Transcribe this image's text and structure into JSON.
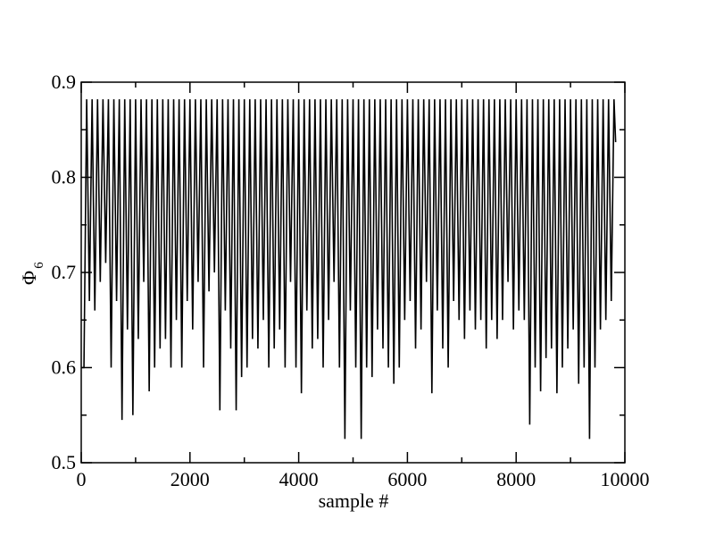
{
  "chart_data": {
    "type": "line",
    "xlabel": "sample #",
    "ylabel": "Φ",
    "ylabel_subscript": "6",
    "xlim": [
      0,
      10000
    ],
    "xticks": [
      0,
      2000,
      4000,
      6000,
      8000,
      10000
    ],
    "ylim": [
      0.5,
      0.9
    ],
    "yticks": [
      0.5,
      0.6,
      0.7,
      0.8,
      0.9
    ],
    "grid": false,
    "series": [
      {
        "color": "#000000",
        "x": [
          0,
          50,
          100,
          150,
          200,
          250,
          300,
          350,
          400,
          450,
          500,
          550,
          600,
          650,
          700,
          750,
          800,
          850,
          900,
          950,
          1000,
          1050,
          1100,
          1150,
          1200,
          1250,
          1300,
          1350,
          1400,
          1450,
          1500,
          1550,
          1600,
          1650,
          1700,
          1750,
          1800,
          1850,
          1900,
          1950,
          2000,
          2050,
          2100,
          2150,
          2200,
          2250,
          2300,
          2350,
          2400,
          2450,
          2500,
          2550,
          2600,
          2650,
          2700,
          2750,
          2800,
          2850,
          2900,
          2950,
          3000,
          3050,
          3100,
          3150,
          3200,
          3250,
          3300,
          3350,
          3400,
          3450,
          3500,
          3550,
          3600,
          3650,
          3700,
          3750,
          3800,
          3850,
          3900,
          3950,
          4000,
          4050,
          4100,
          4150,
          4200,
          4250,
          4300,
          4350,
          4400,
          4450,
          4500,
          4550,
          4600,
          4650,
          4700,
          4750,
          4800,
          4850,
          4900,
          4950,
          5000,
          5050,
          5100,
          5150,
          5200,
          5250,
          5300,
          5350,
          5400,
          5450,
          5500,
          5550,
          5600,
          5650,
          5700,
          5750,
          5800,
          5850,
          5900,
          5950,
          6000,
          6050,
          6100,
          6150,
          6200,
          6250,
          6300,
          6350,
          6400,
          6450,
          6500,
          6550,
          6600,
          6650,
          6700,
          6750,
          6800,
          6850,
          6900,
          6950,
          7000,
          7050,
          7100,
          7150,
          7200,
          7250,
          7300,
          7350,
          7400,
          7450,
          7500,
          7550,
          7600,
          7650,
          7700,
          7750,
          7800,
          7850,
          7900,
          7950,
          8000,
          8050,
          8100,
          8150,
          8200,
          8250,
          8300,
          8350,
          8400,
          8450,
          8500,
          8550,
          8600,
          8650,
          8700,
          8750,
          8800,
          8850,
          8900,
          8950,
          9000,
          9050,
          9100,
          9150,
          9200,
          9250,
          9300,
          9350,
          9400,
          9450,
          9500,
          9550,
          9600,
          9650,
          9700,
          9750,
          9800,
          9830
        ],
        "values": [
          0.6,
          0.6,
          0.882,
          0.67,
          0.882,
          0.66,
          0.882,
          0.69,
          0.882,
          0.71,
          0.882,
          0.6,
          0.882,
          0.67,
          0.882,
          0.545,
          0.882,
          0.64,
          0.882,
          0.55,
          0.882,
          0.63,
          0.882,
          0.69,
          0.882,
          0.575,
          0.882,
          0.6,
          0.882,
          0.62,
          0.882,
          0.63,
          0.882,
          0.6,
          0.882,
          0.65,
          0.882,
          0.6,
          0.882,
          0.67,
          0.882,
          0.64,
          0.882,
          0.69,
          0.882,
          0.6,
          0.882,
          0.68,
          0.882,
          0.7,
          0.882,
          0.555,
          0.882,
          0.66,
          0.882,
          0.62,
          0.882,
          0.555,
          0.882,
          0.59,
          0.882,
          0.6,
          0.882,
          0.63,
          0.882,
          0.62,
          0.882,
          0.65,
          0.882,
          0.6,
          0.882,
          0.62,
          0.882,
          0.64,
          0.882,
          0.6,
          0.882,
          0.69,
          0.882,
          0.6,
          0.882,
          0.573,
          0.882,
          0.66,
          0.882,
          0.62,
          0.882,
          0.63,
          0.882,
          0.6,
          0.882,
          0.65,
          0.882,
          0.69,
          0.882,
          0.6,
          0.882,
          0.525,
          0.882,
          0.66,
          0.882,
          0.6,
          0.882,
          0.525,
          0.882,
          0.6,
          0.882,
          0.59,
          0.882,
          0.64,
          0.882,
          0.62,
          0.882,
          0.6,
          0.882,
          0.583,
          0.882,
          0.6,
          0.882,
          0.65,
          0.882,
          0.67,
          0.882,
          0.62,
          0.882,
          0.64,
          0.882,
          0.69,
          0.882,
          0.573,
          0.882,
          0.66,
          0.882,
          0.62,
          0.882,
          0.6,
          0.882,
          0.67,
          0.882,
          0.65,
          0.882,
          0.63,
          0.882,
          0.66,
          0.882,
          0.64,
          0.882,
          0.65,
          0.882,
          0.62,
          0.882,
          0.65,
          0.882,
          0.63,
          0.882,
          0.65,
          0.882,
          0.69,
          0.882,
          0.64,
          0.882,
          0.66,
          0.882,
          0.65,
          0.882,
          0.54,
          0.882,
          0.6,
          0.882,
          0.575,
          0.882,
          0.61,
          0.882,
          0.62,
          0.882,
          0.573,
          0.882,
          0.6,
          0.882,
          0.62,
          0.882,
          0.64,
          0.882,
          0.583,
          0.882,
          0.6,
          0.882,
          0.525,
          0.882,
          0.6,
          0.882,
          0.64,
          0.882,
          0.65,
          0.882,
          0.67,
          0.882,
          0.837
        ]
      }
    ]
  }
}
